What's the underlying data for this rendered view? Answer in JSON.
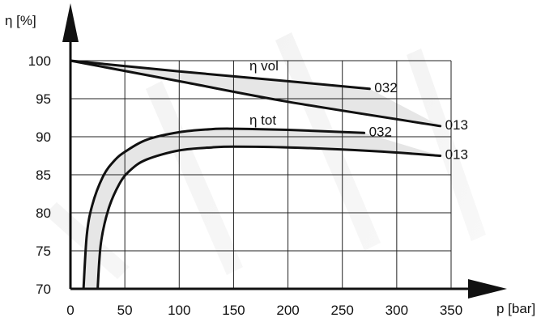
{
  "chart_data": {
    "type": "line",
    "ylabel": "η [%]",
    "xlabel": "p [bar]",
    "xlim": [
      0,
      350
    ],
    "ylim": [
      70,
      100
    ],
    "x_ticks": [
      0,
      50,
      100,
      150,
      200,
      250,
      300,
      350
    ],
    "y_ticks": [
      70,
      75,
      80,
      85,
      90,
      95,
      100
    ],
    "grid": true,
    "groups": [
      {
        "name": "η vol",
        "label": "η vol",
        "fill": "#e6e6e6"
      },
      {
        "name": "η tot",
        "label": "η tot",
        "fill": "#e6e6e6"
      }
    ],
    "series": [
      {
        "group": "η vol",
        "name": "032",
        "label": "032",
        "points": [
          [
            0,
            100
          ],
          [
            100,
            98.6
          ],
          [
            200,
            97.3
          ],
          [
            275,
            96.3
          ]
        ]
      },
      {
        "group": "η vol",
        "name": "013",
        "label": "013",
        "points": [
          [
            0,
            100
          ],
          [
            100,
            97.3
          ],
          [
            200,
            94.6
          ],
          [
            340,
            91.4
          ]
        ]
      },
      {
        "group": "η tot",
        "name": "032",
        "label": "032",
        "points": [
          [
            12,
            70
          ],
          [
            15,
            77
          ],
          [
            20,
            81
          ],
          [
            30,
            84.8
          ],
          [
            40,
            86.8
          ],
          [
            50,
            88
          ],
          [
            70,
            89.6
          ],
          [
            100,
            90.6
          ],
          [
            130,
            91
          ],
          [
            150,
            91.05
          ],
          [
            200,
            90.9
          ],
          [
            270,
            90.5
          ]
        ]
      },
      {
        "group": "η tot",
        "name": "013",
        "label": "013",
        "points": [
          [
            25,
            70
          ],
          [
            28,
            76
          ],
          [
            35,
            80.5
          ],
          [
            45,
            83.8
          ],
          [
            55,
            85.6
          ],
          [
            70,
            87
          ],
          [
            100,
            88.2
          ],
          [
            130,
            88.6
          ],
          [
            150,
            88.7
          ],
          [
            200,
            88.6
          ],
          [
            280,
            88.1
          ],
          [
            340,
            87.5
          ]
        ]
      }
    ]
  }
}
